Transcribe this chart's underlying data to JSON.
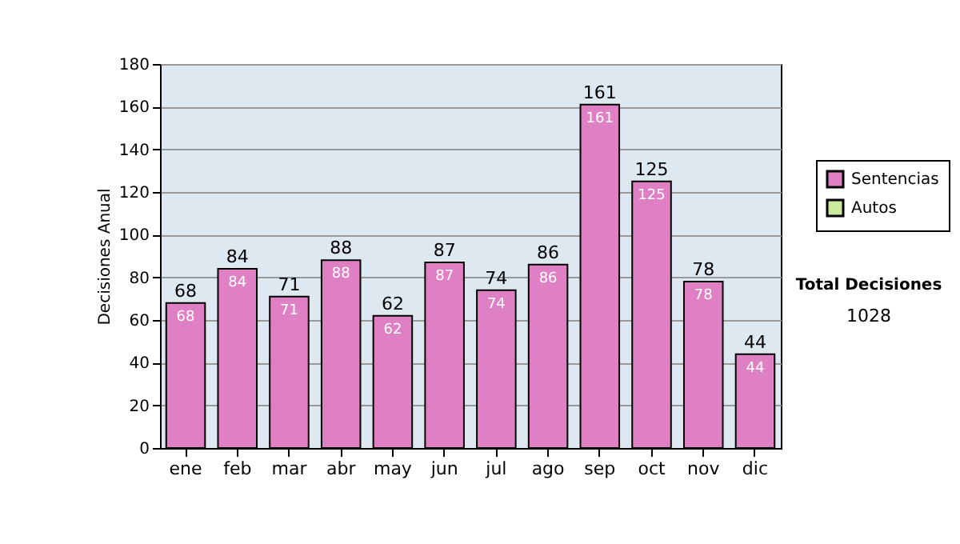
{
  "chart_data": {
    "type": "bar",
    "stacked": true,
    "ylabel": "Decisiones Anual",
    "categories": [
      "ene",
      "feb",
      "mar",
      "abr",
      "may",
      "jun",
      "jul",
      "ago",
      "sep",
      "oct",
      "nov",
      "dic"
    ],
    "series": [
      {
        "name": "Sentencias",
        "color": "#e080c4",
        "values": [
          68,
          84,
          71,
          88,
          62,
          87,
          74,
          86,
          161,
          125,
          78,
          44
        ],
        "value_labels": [
          "68",
          "84",
          "71",
          "88",
          "62",
          "87",
          "74",
          "86",
          "161",
          "125",
          "78",
          "44"
        ]
      },
      {
        "name": "Autos",
        "color": "#cce89a",
        "values": [
          null,
          null,
          null,
          null,
          null,
          null,
          null,
          null,
          null,
          null,
          null,
          null
        ]
      }
    ],
    "totals": [
      "68",
      "84",
      "71",
      "88",
      "62",
      "87",
      "74",
      "86",
      "161",
      "125",
      "78",
      "44"
    ],
    "ylim": [
      0,
      180
    ],
    "yticks": [
      0,
      20,
      40,
      60,
      80,
      100,
      120,
      140,
      160,
      180
    ],
    "grid": "y",
    "legend": "right",
    "annotations": [
      "Total Decisiones",
      "1028"
    ]
  }
}
